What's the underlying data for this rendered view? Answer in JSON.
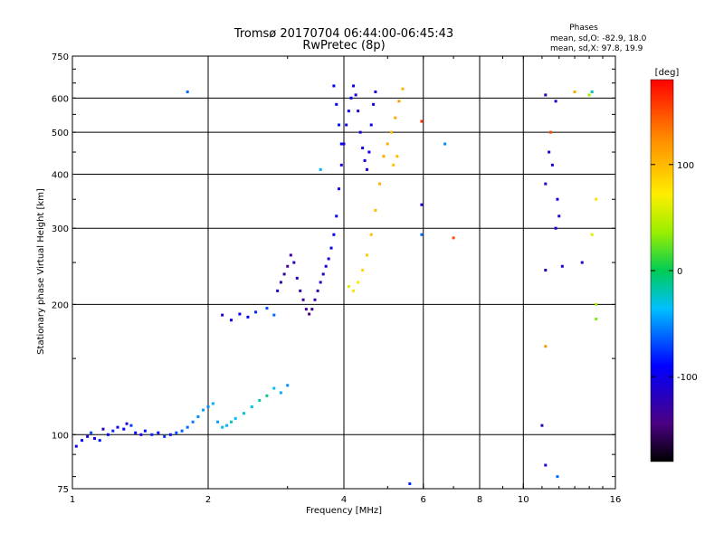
{
  "chart_data": {
    "type": "scatter",
    "title": "Tromsø 20170704 06:44:00-06:45:43",
    "subtitle": "RwPretec (8p)",
    "stats": {
      "heading": "Phases",
      "line_o": "mean, sd,O: -82.9, 18.0",
      "line_x": "mean, sd,X:  97.8, 19.9"
    },
    "xlabel": "Frequency [MHz]",
    "ylabel": "Stationary phase Virtual Height [km]",
    "x_scale": "log",
    "y_scale": "log",
    "xlim": [
      1,
      16
    ],
    "ylim": [
      75,
      750
    ],
    "x_ticks": [
      {
        "value": 1,
        "label": "1"
      },
      {
        "value": 2,
        "label": "2"
      },
      {
        "value": 4,
        "label": "4"
      },
      {
        "value": 6,
        "label": "6"
      },
      {
        "value": 8,
        "label": "8"
      },
      {
        "value": 10,
        "label": "10"
      },
      {
        "value": 16,
        "label": "16"
      }
    ],
    "y_ticks": [
      {
        "value": 75,
        "label": "75"
      },
      {
        "value": 100,
        "label": "100"
      },
      {
        "value": 200,
        "label": "200"
      },
      {
        "value": 300,
        "label": "300"
      },
      {
        "value": 400,
        "label": "400"
      },
      {
        "value": 500,
        "label": "500"
      },
      {
        "value": 600,
        "label": "600"
      },
      {
        "value": 750,
        "label": "750"
      }
    ],
    "grid": true,
    "colorbar": {
      "label": "[deg]",
      "range": [
        -180,
        180
      ],
      "ticks": [
        {
          "value": 100,
          "label": "100"
        },
        {
          "value": 0,
          "label": "0"
        },
        {
          "value": -100,
          "label": "-100"
        }
      ]
    },
    "points": [
      [
        1.02,
        94,
        -95
      ],
      [
        1.05,
        97,
        -90
      ],
      [
        1.08,
        99,
        -110
      ],
      [
        1.1,
        101,
        -70
      ],
      [
        1.12,
        98,
        -100
      ],
      [
        1.15,
        97,
        -85
      ],
      [
        1.17,
        103,
        -120
      ],
      [
        1.2,
        100,
        -95
      ],
      [
        1.23,
        102,
        -80
      ],
      [
        1.26,
        104,
        -105
      ],
      [
        1.3,
        103,
        -90
      ],
      [
        1.32,
        106,
        -115
      ],
      [
        1.35,
        105,
        -75
      ],
      [
        1.38,
        101,
        -95
      ],
      [
        1.42,
        100,
        -100
      ],
      [
        1.45,
        102,
        -85
      ],
      [
        1.5,
        100,
        -80
      ],
      [
        1.55,
        101,
        -90
      ],
      [
        1.6,
        99,
        -75
      ],
      [
        1.65,
        100,
        -85
      ],
      [
        1.7,
        101,
        -70
      ],
      [
        1.75,
        102,
        -65
      ],
      [
        1.8,
        104,
        -60
      ],
      [
        1.85,
        107,
        -55
      ],
      [
        1.9,
        110,
        -50
      ],
      [
        1.95,
        114,
        -45
      ],
      [
        2.0,
        116,
        -50
      ],
      [
        2.05,
        118,
        -40
      ],
      [
        2.1,
        107,
        -45
      ],
      [
        2.15,
        104,
        -30
      ],
      [
        2.2,
        105,
        -40
      ],
      [
        2.25,
        107,
        -20
      ],
      [
        2.3,
        109,
        -35
      ],
      [
        2.4,
        112,
        -25
      ],
      [
        2.5,
        116,
        -30
      ],
      [
        2.6,
        120,
        -20
      ],
      [
        2.7,
        123,
        -10
      ],
      [
        2.8,
        128,
        -30
      ],
      [
        2.9,
        125,
        -40
      ],
      [
        3.0,
        130,
        -50
      ],
      [
        2.15,
        189,
        -110
      ],
      [
        2.25,
        184,
        -100
      ],
      [
        2.35,
        190,
        -95
      ],
      [
        2.45,
        187,
        -90
      ],
      [
        2.55,
        192,
        -80
      ],
      [
        2.7,
        196,
        -70
      ],
      [
        2.8,
        189,
        -60
      ],
      [
        2.85,
        215,
        -120
      ],
      [
        2.9,
        225,
        -125
      ],
      [
        2.95,
        235,
        -130
      ],
      [
        3.0,
        245,
        -135
      ],
      [
        3.05,
        260,
        -130
      ],
      [
        3.1,
        250,
        -125
      ],
      [
        3.15,
        230,
        -120
      ],
      [
        3.2,
        215,
        -125
      ],
      [
        3.25,
        205,
        -130
      ],
      [
        3.3,
        195,
        -135
      ],
      [
        3.35,
        190,
        -140
      ],
      [
        3.4,
        195,
        -135
      ],
      [
        3.45,
        205,
        -130
      ],
      [
        3.5,
        215,
        -125
      ],
      [
        3.55,
        225,
        -120
      ],
      [
        3.6,
        235,
        -115
      ],
      [
        3.65,
        245,
        -110
      ],
      [
        3.7,
        255,
        -105
      ],
      [
        3.75,
        270,
        -100
      ],
      [
        3.8,
        290,
        -95
      ],
      [
        3.85,
        320,
        -95
      ],
      [
        3.9,
        370,
        -100
      ],
      [
        3.95,
        420,
        -105
      ],
      [
        4.0,
        470,
        -110
      ],
      [
        4.05,
        520,
        -105
      ],
      [
        4.1,
        560,
        -100
      ],
      [
        4.15,
        600,
        -95
      ],
      [
        4.2,
        640,
        -100
      ],
      [
        4.25,
        610,
        -105
      ],
      [
        4.3,
        560,
        -110
      ],
      [
        4.35,
        500,
        -105
      ],
      [
        4.4,
        460,
        -100
      ],
      [
        4.45,
        430,
        -110
      ],
      [
        4.5,
        410,
        -105
      ],
      [
        4.55,
        450,
        -100
      ],
      [
        4.6,
        520,
        -95
      ],
      [
        4.65,
        580,
        -100
      ],
      [
        4.7,
        620,
        -105
      ],
      [
        3.8,
        640,
        -90
      ],
      [
        3.85,
        580,
        -95
      ],
      [
        3.9,
        520,
        -85
      ],
      [
        3.95,
        470,
        -90
      ],
      [
        4.1,
        220,
        60
      ],
      [
        4.2,
        215,
        80
      ],
      [
        4.3,
        225,
        75
      ],
      [
        4.4,
        240,
        85
      ],
      [
        4.5,
        260,
        90
      ],
      [
        4.6,
        290,
        95
      ],
      [
        4.7,
        330,
        100
      ],
      [
        4.8,
        380,
        105
      ],
      [
        4.9,
        440,
        110
      ],
      [
        5.0,
        470,
        105
      ],
      [
        5.1,
        500,
        100
      ],
      [
        5.2,
        540,
        110
      ],
      [
        5.3,
        590,
        115
      ],
      [
        5.4,
        630,
        105
      ],
      [
        5.25,
        440,
        100
      ],
      [
        5.15,
        420,
        95
      ],
      [
        1.8,
        620,
        -60
      ],
      [
        3.55,
        410,
        -40
      ],
      [
        5.95,
        530,
        160
      ],
      [
        5.95,
        340,
        -110
      ],
      [
        5.95,
        290,
        -60
      ],
      [
        6.7,
        470,
        -50
      ],
      [
        7.0,
        285,
        150
      ],
      [
        5.6,
        77,
        -80
      ],
      [
        11.2,
        610,
        -120
      ],
      [
        11.8,
        590,
        -110
      ],
      [
        11.5,
        500,
        150
      ],
      [
        11.4,
        450,
        -115
      ],
      [
        11.6,
        420,
        -110
      ],
      [
        11.2,
        380,
        -115
      ],
      [
        11.9,
        350,
        -105
      ],
      [
        12.0,
        320,
        -110
      ],
      [
        11.8,
        300,
        -105
      ],
      [
        11.2,
        240,
        -115
      ],
      [
        12.2,
        245,
        -110
      ],
      [
        13.5,
        250,
        -120
      ],
      [
        11.2,
        160,
        120
      ],
      [
        11.0,
        105,
        -120
      ],
      [
        11.2,
        85,
        -110
      ],
      [
        11.9,
        80,
        -60
      ],
      [
        13.0,
        620,
        110
      ],
      [
        14.0,
        610,
        40
      ],
      [
        14.5,
        350,
        80
      ],
      [
        14.2,
        290,
        60
      ],
      [
        14.5,
        200,
        40
      ],
      [
        14.5,
        185,
        30
      ],
      [
        14.2,
        620,
        -20
      ]
    ]
  }
}
